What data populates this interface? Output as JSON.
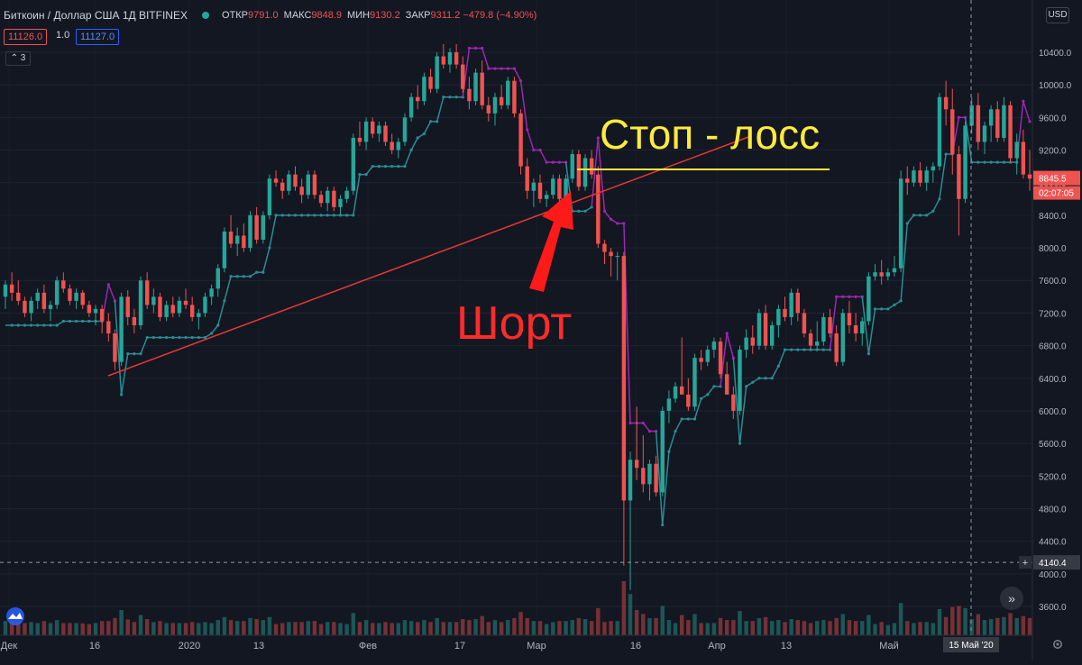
{
  "header": {
    "symbol": "Биткоин / Доллар США  1Д  BITFINEX",
    "open_label": "ОТКР",
    "open_value": "9791.0",
    "high_label": "МАКС",
    "high_value": "9848.9",
    "low_label": "МИН",
    "low_value": "9130.2",
    "close_label": "ЗАКР",
    "close_value": "9311.2 −479.8 (−4.90%)",
    "sell_price": "11126.0",
    "spread": "1.0",
    "buy_price": "11127.0",
    "indicators_toggle": "⌃ 3"
  },
  "currency_button": "USD",
  "price_axis": {
    "ticks": [
      10400,
      10000,
      9600,
      9200,
      8800,
      8400,
      8000,
      7600,
      7200,
      6800,
      6400,
      6000,
      5600,
      5200,
      4800,
      4400,
      4000,
      3600
    ],
    "last_price_label": "8845.5",
    "countdown_label": "02:07:05",
    "crosshair_price_label": "4140.4",
    "plus_label": "+"
  },
  "time_axis": {
    "labels": [
      "Дек",
      "16",
      "2020",
      "13",
      "Фев",
      "17",
      "Мар",
      "16",
      "Апр",
      "13",
      "Май"
    ],
    "crosshair_date": "15 Май '20"
  },
  "annotations": {
    "stop_loss": "Стоп - лосс",
    "short": "Шорт"
  },
  "colors": {
    "background": "#131722",
    "up": "#26a69a",
    "down": "#ef5350",
    "stop_line_up": "#2a8c94",
    "stop_line_down": "#9c27b0",
    "trendline": "#e53935",
    "stop_loss_text": "#ffeb3b",
    "short_text": "#ff2a2a",
    "arrow": "#ff1a1a"
  },
  "chart_data": {
    "type": "candlestick",
    "title": "Биткоин / Доллар США 1Д BITFINEX",
    "y_range": [
      3400,
      10700
    ],
    "series": [
      {
        "name": "BTCUSD",
        "ohlc": [
          [
            7400,
            7600,
            7250,
            7550
          ],
          [
            7550,
            7700,
            7350,
            7450
          ],
          [
            7450,
            7600,
            7300,
            7350
          ],
          [
            7350,
            7400,
            7150,
            7200
          ],
          [
            7200,
            7400,
            7100,
            7350
          ],
          [
            7350,
            7500,
            7250,
            7450
          ],
          [
            7450,
            7550,
            7200,
            7250
          ],
          [
            7250,
            7350,
            7100,
            7300
          ],
          [
            7300,
            7650,
            7250,
            7600
          ],
          [
            7600,
            7700,
            7450,
            7500
          ],
          [
            7500,
            7550,
            7300,
            7350
          ],
          [
            7350,
            7500,
            7250,
            7450
          ],
          [
            7450,
            7480,
            7250,
            7300
          ],
          [
            7300,
            7350,
            7150,
            7200
          ],
          [
            7200,
            7300,
            7050,
            7250
          ],
          [
            7250,
            7300,
            6950,
            7100
          ],
          [
            7100,
            7200,
            6850,
            6950
          ],
          [
            6950,
            7000,
            6500,
            6600
          ],
          [
            6600,
            7450,
            6550,
            7400
          ],
          [
            7400,
            7480,
            7050,
            7150
          ],
          [
            7150,
            7250,
            6950,
            7050
          ],
          [
            7050,
            7650,
            7000,
            7600
          ],
          [
            7600,
            7700,
            7250,
            7300
          ],
          [
            7300,
            7500,
            7200,
            7400
          ],
          [
            7400,
            7450,
            7100,
            7150
          ],
          [
            7150,
            7350,
            7100,
            7300
          ],
          [
            7300,
            7400,
            7150,
            7200
          ],
          [
            7200,
            7400,
            7150,
            7350
          ],
          [
            7350,
            7500,
            7250,
            7300
          ],
          [
            7300,
            7400,
            7100,
            7150
          ],
          [
            7150,
            7250,
            7000,
            7200
          ],
          [
            7200,
            7450,
            7150,
            7400
          ],
          [
            7400,
            7550,
            7300,
            7500
          ],
          [
            7500,
            7800,
            7400,
            7750
          ],
          [
            7750,
            8250,
            7700,
            8200
          ],
          [
            8200,
            8400,
            8000,
            8050
          ],
          [
            8050,
            8250,
            7900,
            8150
          ],
          [
            8150,
            8300,
            7950,
            8000
          ],
          [
            8000,
            8450,
            7950,
            8400
          ],
          [
            8400,
            8500,
            8050,
            8100
          ],
          [
            8100,
            8450,
            8050,
            8400
          ],
          [
            8400,
            8900,
            8350,
            8850
          ],
          [
            8850,
            8950,
            8750,
            8800
          ],
          [
            8800,
            8850,
            8600,
            8700
          ],
          [
            8700,
            8950,
            8650,
            8900
          ],
          [
            8900,
            9000,
            8700,
            8750
          ],
          [
            8750,
            8850,
            8550,
            8650
          ],
          [
            8650,
            8950,
            8600,
            8900
          ],
          [
            8900,
            8950,
            8600,
            8650
          ],
          [
            8650,
            8700,
            8500,
            8550
          ],
          [
            8550,
            8750,
            8450,
            8700
          ],
          [
            8700,
            8750,
            8450,
            8500
          ],
          [
            8500,
            8650,
            8400,
            8600
          ],
          [
            8600,
            8750,
            8550,
            8700
          ],
          [
            8700,
            9400,
            8650,
            9350
          ],
          [
            9350,
            9550,
            9250,
            9300
          ],
          [
            9300,
            9600,
            9200,
            9550
          ],
          [
            9550,
            9600,
            9350,
            9400
          ],
          [
            9400,
            9550,
            9300,
            9500
          ],
          [
            9500,
            9550,
            9250,
            9300
          ],
          [
            9300,
            9400,
            9150,
            9200
          ],
          [
            9200,
            9350,
            9100,
            9300
          ],
          [
            9300,
            9650,
            9250,
            9600
          ],
          [
            9600,
            9900,
            9550,
            9850
          ],
          [
            9850,
            10000,
            9700,
            9800
          ],
          [
            9800,
            10150,
            9750,
            10100
          ],
          [
            10100,
            10200,
            9900,
            9950
          ],
          [
            9950,
            10400,
            9900,
            10350
          ],
          [
            10350,
            10500,
            10200,
            10250
          ],
          [
            10250,
            10450,
            10150,
            10400
          ],
          [
            10400,
            10500,
            10200,
            10250
          ],
          [
            10250,
            10350,
            9900,
            9950
          ],
          [
            9950,
            10100,
            9700,
            9800
          ],
          [
            9800,
            10200,
            9750,
            10150
          ],
          [
            10150,
            10300,
            9700,
            9750
          ],
          [
            9750,
            9850,
            9550,
            9650
          ],
          [
            9650,
            9900,
            9500,
            9850
          ],
          [
            9850,
            10000,
            9700,
            9750
          ],
          [
            9750,
            10100,
            9700,
            10050
          ],
          [
            10050,
            10100,
            9600,
            9650
          ],
          [
            9650,
            9700,
            8900,
            9000
          ],
          [
            9000,
            9100,
            8600,
            8700
          ],
          [
            8700,
            8850,
            8500,
            8800
          ],
          [
            8800,
            8900,
            8550,
            8600
          ],
          [
            8600,
            8700,
            8500,
            8650
          ],
          [
            8650,
            8900,
            8600,
            8850
          ],
          [
            8850,
            8900,
            8550,
            8600
          ],
          [
            8600,
            8900,
            8550,
            8850
          ],
          [
            8850,
            9200,
            8800,
            9150
          ],
          [
            9150,
            9200,
            8700,
            8750
          ],
          [
            8750,
            9150,
            8700,
            9100
          ],
          [
            9100,
            9200,
            8850,
            8900
          ],
          [
            8900,
            9000,
            8000,
            8050
          ],
          [
            8050,
            8100,
            7800,
            7950
          ],
          [
            7950,
            8000,
            7650,
            7900
          ],
          [
            7900,
            7950,
            7600,
            7900
          ],
          [
            7900,
            7950,
            4100,
            4900
          ],
          [
            4900,
            5500,
            3800,
            5400
          ],
          [
            5400,
            6050,
            5150,
            5300
          ],
          [
            5300,
            5700,
            5000,
            5100
          ],
          [
            5100,
            5400,
            4900,
            5350
          ],
          [
            5350,
            5450,
            4950,
            5000
          ],
          [
            5000,
            6050,
            4950,
            6000
          ],
          [
            6000,
            6250,
            5850,
            6150
          ],
          [
            6150,
            6350,
            6100,
            6300
          ],
          [
            6300,
            6900,
            6250,
            6200
          ],
          [
            6200,
            6400,
            6000,
            6050
          ],
          [
            6050,
            6700,
            6000,
            6650
          ],
          [
            6650,
            6750,
            6500,
            6600
          ],
          [
            6600,
            6800,
            6550,
            6750
          ],
          [
            6750,
            6900,
            6650,
            6850
          ],
          [
            6850,
            6900,
            6400,
            6450
          ],
          [
            6450,
            6600,
            6200,
            6200
          ],
          [
            6200,
            6300,
            5900,
            6000
          ],
          [
            6000,
            6800,
            5950,
            6750
          ],
          [
            6750,
            7000,
            6650,
            6900
          ],
          [
            6900,
            7050,
            6700,
            6800
          ],
          [
            6800,
            7250,
            6750,
            7200
          ],
          [
            7200,
            7300,
            6750,
            6800
          ],
          [
            6800,
            7100,
            6750,
            7050
          ],
          [
            7050,
            7300,
            6900,
            7250
          ],
          [
            7250,
            7400,
            7100,
            7150
          ],
          [
            7150,
            7500,
            7050,
            7450
          ],
          [
            7450,
            7500,
            7100,
            7200
          ],
          [
            7200,
            7250,
            6900,
            6950
          ],
          [
            6950,
            7000,
            6750,
            6800
          ],
          [
            6800,
            7100,
            6750,
            6850
          ],
          [
            6850,
            7200,
            6800,
            7150
          ],
          [
            7150,
            7250,
            6900,
            6950
          ],
          [
            6950,
            7050,
            6550,
            6600
          ],
          [
            6600,
            7250,
            6550,
            7200
          ],
          [
            7200,
            7350,
            6950,
            7050
          ],
          [
            7050,
            7200,
            6850,
            6950
          ],
          [
            6950,
            7150,
            6800,
            7100
          ],
          [
            7100,
            7700,
            7050,
            7650
          ],
          [
            7650,
            7800,
            7600,
            7700
          ],
          [
            7700,
            7850,
            7550,
            7650
          ],
          [
            7650,
            7750,
            7600,
            7700
          ],
          [
            7700,
            7900,
            7650,
            7750
          ],
          [
            7750,
            8950,
            7700,
            8850
          ],
          [
            8850,
            9000,
            8650,
            8800
          ],
          [
            8800,
            9000,
            8750,
            8950
          ],
          [
            8950,
            9050,
            8750,
            8800
          ],
          [
            8800,
            9000,
            8700,
            8950
          ],
          [
            8950,
            9050,
            8800,
            9000
          ],
          [
            9000,
            9900,
            8950,
            9850
          ],
          [
            9850,
            10050,
            9500,
            9700
          ],
          [
            9700,
            9950,
            8900,
            9150
          ],
          [
            9150,
            9250,
            8150,
            8600
          ],
          [
            8600,
            9550,
            8550,
            9500
          ],
          [
            9500,
            9850,
            9400,
            9750
          ],
          [
            9750,
            9900,
            9200,
            9300
          ],
          [
            9300,
            9550,
            9150,
            9500
          ],
          [
            9500,
            9750,
            9300,
            9700
          ],
          [
            9700,
            9800,
            9300,
            9350
          ],
          [
            9350,
            9850,
            9300,
            9750
          ],
          [
            9750,
            9800,
            9050,
            9100
          ],
          [
            9100,
            9400,
            8900,
            9300
          ],
          [
            9300,
            9450,
            8850,
            8900
          ],
          [
            8900,
            9200,
            8700,
            8850
          ]
        ]
      }
    ],
    "x_labels": [
      "Дек",
      "16",
      "2020",
      "13",
      "Фев",
      "17",
      "Мар",
      "16",
      "Апр",
      "13",
      "Май"
    ]
  }
}
